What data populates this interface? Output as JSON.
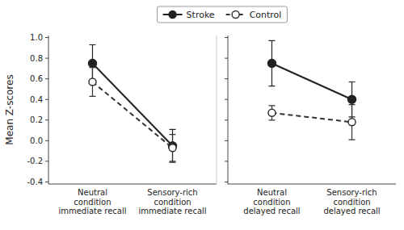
{
  "chart_data": [
    {
      "type": "line",
      "categories": [
        "Neutral\ncondition\nimmediate recall",
        "Sensory-rich\ncondition\nimmediate recall"
      ],
      "series": [
        {
          "name": "Stroke",
          "color": "#222222",
          "marker": "circle",
          "line_style": "solid",
          "values": [
            0.75,
            -0.05
          ],
          "errors": [
            0.18,
            0.16
          ]
        },
        {
          "name": "Control",
          "color": "#333333",
          "marker": "open-circle",
          "line_style": "dashed",
          "values": [
            0.57,
            -0.07
          ],
          "errors": [
            0.14,
            0.13
          ]
        }
      ],
      "y_label": "Mean Z-scores",
      "ylim": [
        -0.42,
        1.02
      ],
      "yticks": [
        -0.4,
        -0.2,
        {
          "value": 0.0,
          "label": "0.0"
        },
        0.2,
        0.4,
        0.6,
        0.8,
        {
          "value": 1.0,
          "label": "1.0"
        }
      ],
      "grid": false,
      "legend": "top"
    },
    {
      "type": "line",
      "categories": [
        "Neutral\ncondition\ndelayed recall",
        "Sensory-rich\ncondition\ndelayed recall"
      ],
      "series": [
        {
          "name": "Stroke",
          "color": "#222222",
          "marker": "circle",
          "line_style": "solid",
          "values": [
            0.75,
            0.4
          ],
          "errors": [
            0.22,
            0.17
          ]
        },
        {
          "name": "Control",
          "color": "#333333",
          "marker": "open-circle",
          "line_style": "dashed",
          "values": [
            0.27,
            0.18
          ],
          "errors": [
            0.07,
            0.17
          ]
        }
      ],
      "ylim": [
        -0.42,
        1.02
      ],
      "yticks": [
        -0.4,
        -0.2,
        {
          "value": 0.0,
          "label": "0.0"
        },
        0.2,
        0.4,
        0.6,
        0.8,
        {
          "value": 1.0,
          "label": "1.0"
        }
      ],
      "grid": false,
      "tick_labels": "x"
    }
  ]
}
